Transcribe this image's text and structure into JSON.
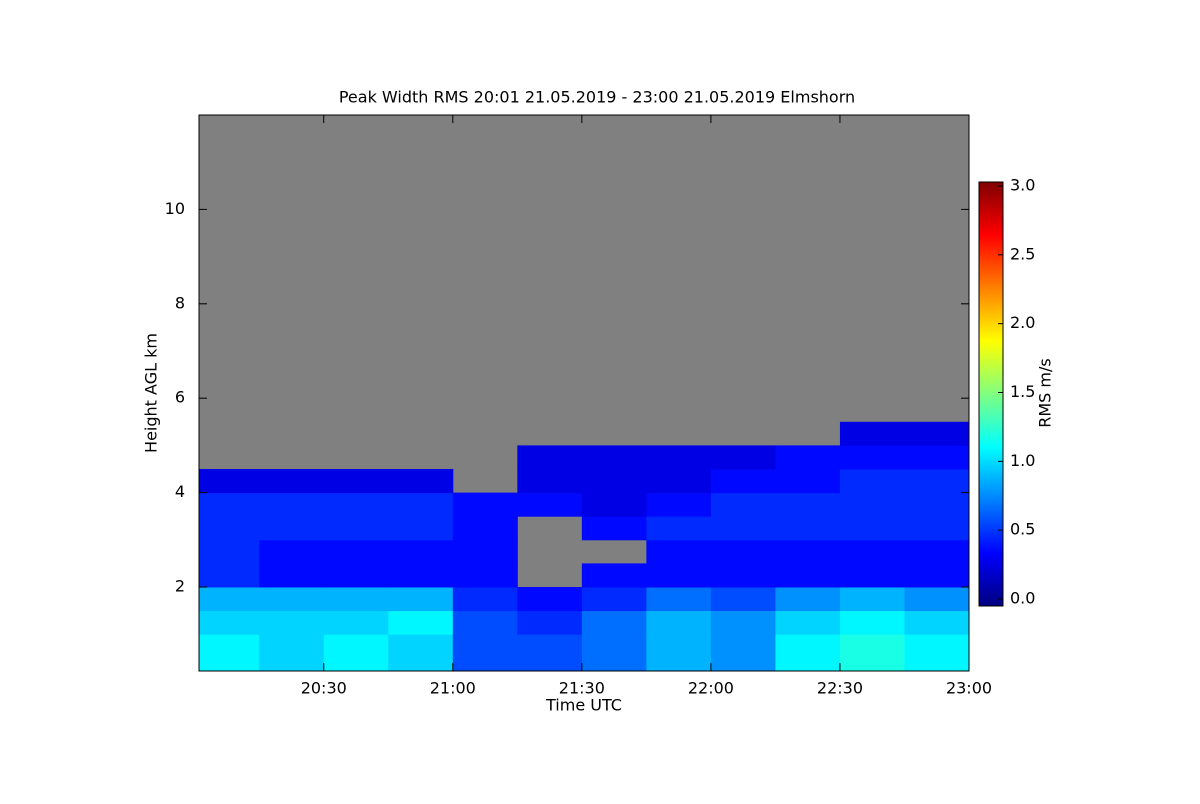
{
  "chart_data": {
    "type": "heatmap",
    "title": "Peak Width RMS  20:01 21.05.2019 - 23:00 21.05.2019 Elmshorn",
    "x_label": "Time UTC",
    "y_label": "Height AGL km",
    "colorbar_label": "RMS m/s",
    "colormap": "jet",
    "background": "#808080",
    "xlim": [
      "20:01",
      "23:00"
    ],
    "xticks": [
      "20:30",
      "21:00",
      "21:30",
      "22:00",
      "22:30",
      "23:00"
    ],
    "ylim": [
      0.22,
      12
    ],
    "yticks": [
      2,
      4,
      6,
      8,
      10
    ],
    "clim": [
      0,
      3
    ],
    "cticks": [
      {
        "value": 0,
        "label": "0.0"
      },
      {
        "value": 0.5,
        "label": "0.5"
      },
      {
        "value": 1,
        "label": "1.0"
      },
      {
        "value": 1.5,
        "label": "1.5"
      },
      {
        "value": 2,
        "label": "2.0"
      },
      {
        "value": 2.5,
        "label": "2.5"
      },
      {
        "value": 3,
        "label": "3.0"
      }
    ],
    "xbins": [
      "20:01",
      "20:15",
      "20:30",
      "20:45",
      "21:00",
      "21:15",
      "21:30",
      "21:45",
      "22:00",
      "22:15",
      "22:30",
      "22:45",
      "23:00"
    ],
    "ybins": [
      0.22,
      1,
      1.5,
      2,
      2.5,
      3,
      3.5,
      4,
      4.5,
      5,
      5.5
    ],
    "values": [
      [
        1.1,
        1.0,
        1.1,
        1.0,
        0.6,
        0.6,
        0.7,
        0.9,
        0.8,
        1.1,
        1.2,
        1.1
      ],
      [
        1.0,
        1.0,
        1.0,
        1.1,
        0.6,
        0.5,
        0.7,
        0.9,
        0.8,
        1.0,
        1.1,
        1.0
      ],
      [
        0.9,
        0.9,
        0.9,
        0.9,
        0.5,
        0.4,
        0.5,
        0.7,
        0.6,
        0.8,
        0.9,
        0.8
      ],
      [
        0.5,
        0.4,
        0.4,
        0.4,
        0.4,
        null,
        0.4,
        0.4,
        0.4,
        0.4,
        0.4,
        0.4
      ],
      [
        0.5,
        0.4,
        0.4,
        0.4,
        0.4,
        null,
        null,
        0.4,
        0.4,
        0.4,
        0.4,
        0.4
      ],
      [
        0.5,
        0.5,
        0.5,
        0.5,
        0.4,
        null,
        0.4,
        0.5,
        0.5,
        0.5,
        0.5,
        0.5
      ],
      [
        0.5,
        0.5,
        0.5,
        0.5,
        0.4,
        0.4,
        0.3,
        0.4,
        0.5,
        0.5,
        0.5,
        0.5
      ],
      [
        0.3,
        0.3,
        0.3,
        0.3,
        null,
        0.3,
        0.3,
        0.3,
        0.4,
        0.4,
        0.5,
        0.5
      ],
      [
        null,
        null,
        null,
        null,
        null,
        0.3,
        0.3,
        0.3,
        0.3,
        0.4,
        0.4,
        0.4
      ],
      [
        null,
        null,
        null,
        null,
        null,
        null,
        null,
        null,
        null,
        null,
        0.3,
        0.3
      ]
    ]
  }
}
